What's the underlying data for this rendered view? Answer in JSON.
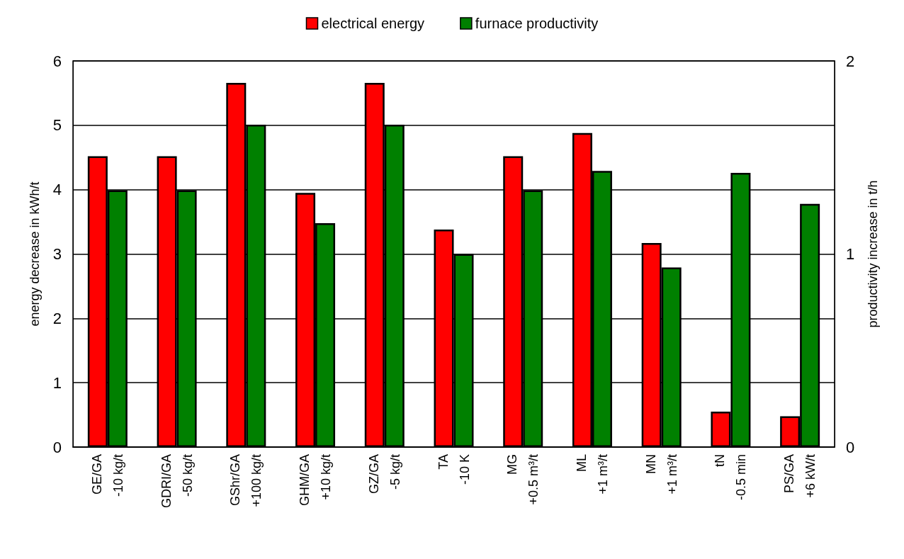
{
  "chart_data": {
    "type": "bar",
    "categories": [
      "GE/GA\n-10 kg/t",
      "GDRI/GA\n-50 kg/t",
      "GShr/GA\n+100 kg/t",
      "GHM/GA\n+10 kg/t",
      "GZ/GA\n-5 kg/t",
      "TA\n-10 K",
      "MG\n+0.5 m³/t",
      "ML\n+1 m³/t",
      "MN\n+1 m³/t",
      "tN\n-0.5 min",
      "PS/GA\n+6 kW/t"
    ],
    "series": [
      {
        "name": "electrical energy",
        "color": "#ff0000",
        "values": [
          4.52,
          4.52,
          5.66,
          3.95,
          5.66,
          3.38,
          4.52,
          4.88,
          3.17,
          0.55,
          0.48
        ]
      },
      {
        "name": "furnace productivity",
        "color": "#008000",
        "axis": "y2",
        "values": [
          1.33,
          1.33,
          1.67,
          1.16,
          1.67,
          1.0,
          1.33,
          1.43,
          0.93,
          1.42,
          1.26
        ]
      }
    ],
    "ylabel": "energy decrease in kWh/t",
    "y2label": "productivity increase in t/h",
    "ylim": [
      0,
      6
    ],
    "yticks": [
      0,
      1,
      2,
      3,
      4,
      5,
      6
    ],
    "y2lim": [
      0,
      2
    ],
    "y2ticks": [
      0,
      1,
      2
    ],
    "grid": "y",
    "legend": "top"
  }
}
